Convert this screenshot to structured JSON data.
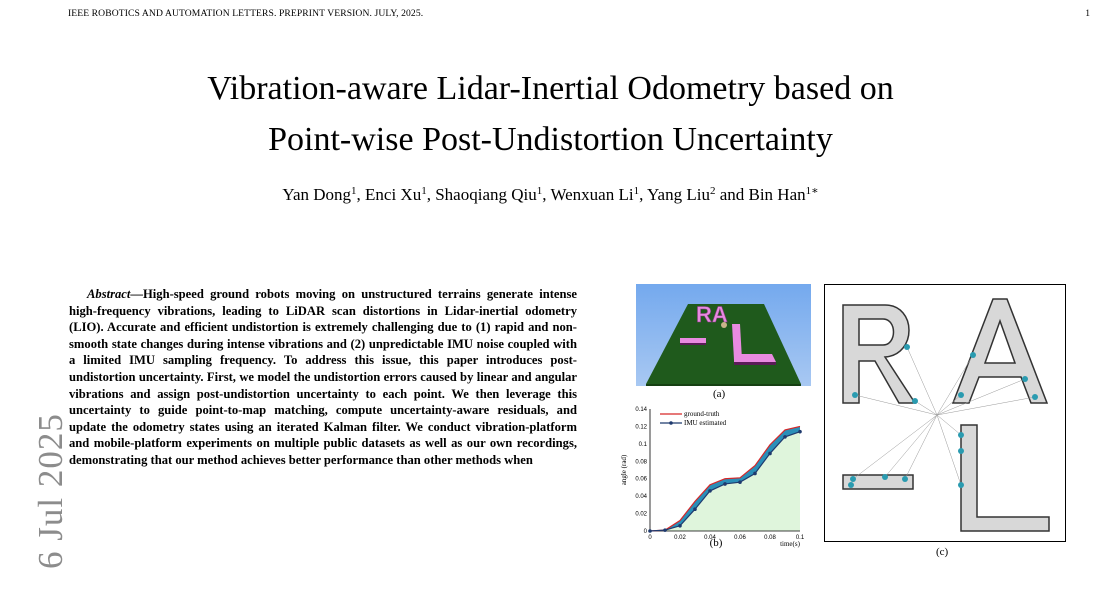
{
  "header": {
    "running_title": "IEEE ROBOTICS AND AUTOMATION LETTERS. PREPRINT VERSION. JULY, 2025.",
    "page_number": "1"
  },
  "side_stamp": "6 Jul 2025",
  "title_line1": "Vibration-aware Lidar-Inertial Odometry based on",
  "title_line2": "Point-wise Post-Undistortion Uncertainty",
  "authors": [
    {
      "name": "Yan Dong",
      "sup": "1"
    },
    {
      "name": "Enci Xu",
      "sup": "1"
    },
    {
      "name": "Shaoqiang Qiu",
      "sup": "1"
    },
    {
      "name": "Wenxuan Li",
      "sup": "1"
    },
    {
      "name": "Yang Liu",
      "sup": "2"
    },
    {
      "name": "Bin Han",
      "sup": "1∗"
    }
  ],
  "abstract": {
    "lead": "Abstract",
    "text": "—High-speed ground robots moving on unstructured terrains generate intense high-frequency vibrations, leading to LiDAR scan distortions in Lidar-inertial odometry (LIO). Accurate and efficient undistortion is extremely challenging due to (1) rapid and non-smooth state changes during intense vibrations and (2) unpredictable IMU noise coupled with a limited IMU sampling frequency. To address this issue, this paper introduces post-undistortion uncertainty. First, we model the undistortion errors caused by linear and angular vibrations and assign post-undistortion uncertainty to each point. We then leverage this uncertainty to guide point-to-map matching, compute uncertainty-aware residuals, and update the odometry states using an iterated Kalman filter. We conduct vibration-platform and mobile-platform experiments on multiple public datasets as well as our own recordings, demonstrating that our method achieves better performance than other methods when"
  },
  "figure": {
    "caption_a": "(a)",
    "caption_b": "(b)",
    "caption_c": "(c)",
    "scene_letters": "RA",
    "colors": {
      "sky": "#8db8f0",
      "ground": "#1f5a1c",
      "letters": "#e88be0"
    }
  },
  "chart_data": {
    "type": "line",
    "ylabel": "angle (rad)",
    "xlabel": "time(s)",
    "xlim": [
      0,
      0.1
    ],
    "ylim": [
      0,
      0.14
    ],
    "xticks": [
      "0",
      "0.02",
      "0.04",
      "0.06",
      "0.08",
      "0.1"
    ],
    "yticks": [
      "0",
      "0.02",
      "0.04",
      "0.06",
      "0.08",
      "0.1",
      "0.12",
      "0.14"
    ],
    "legend_position": "top-left",
    "series": [
      {
        "name": "ground-truth",
        "color": "#d62728",
        "x": [
          0,
          0.01,
          0.02,
          0.03,
          0.04,
          0.05,
          0.06,
          0.07,
          0.08,
          0.09,
          0.1
        ],
        "y": [
          0,
          0.001,
          0.012,
          0.034,
          0.053,
          0.06,
          0.061,
          0.075,
          0.099,
          0.116,
          0.12
        ]
      },
      {
        "name": "IMU estimated",
        "color": "#1f3a6e",
        "x": [
          0,
          0.01,
          0.02,
          0.03,
          0.04,
          0.05,
          0.06,
          0.07,
          0.08,
          0.09,
          0.1
        ],
        "y": [
          0,
          0.001,
          0.006,
          0.025,
          0.046,
          0.054,
          0.056,
          0.066,
          0.089,
          0.108,
          0.114
        ]
      }
    ]
  }
}
